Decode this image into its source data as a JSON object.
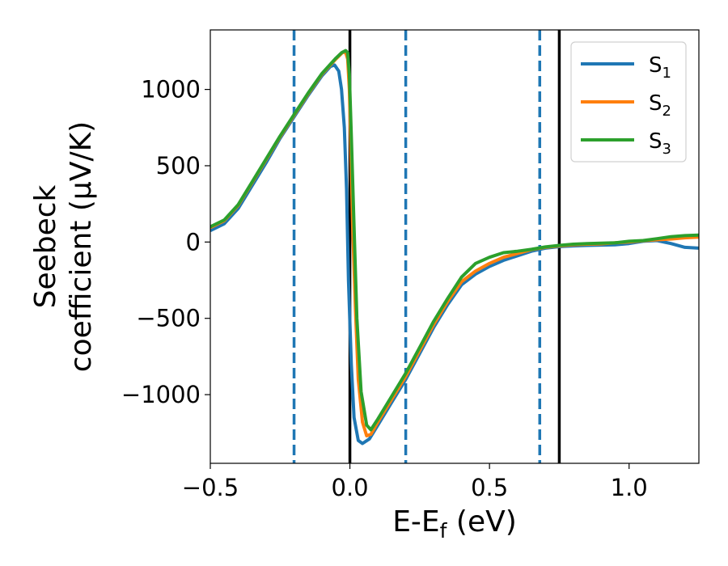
{
  "chart_data": {
    "type": "line",
    "xlabel": {
      "base": "E-E",
      "sub": "f",
      "tail": " (eV)"
    },
    "ylabel": {
      "line1": "Seebeck",
      "line2": "coefficient  (μV/K)"
    },
    "xlim": [
      -0.5,
      1.25
    ],
    "ylim": [
      -1450,
      1390
    ],
    "xticks": [
      {
        "value": -0.5,
        "label": "−0.5"
      },
      {
        "value": 0.0,
        "label": "0.0"
      },
      {
        "value": 0.5,
        "label": "0.5"
      },
      {
        "value": 1.0,
        "label": "1.0"
      }
    ],
    "yticks": [
      {
        "value": -1000,
        "label": "−1000"
      },
      {
        "value": -500,
        "label": "−500"
      },
      {
        "value": 0,
        "label": "0"
      },
      {
        "value": 500,
        "label": "500"
      },
      {
        "value": 1000,
        "label": "1000"
      }
    ],
    "grid": false,
    "legend_position": "top-right",
    "vlines": [
      {
        "x": -0.2,
        "style": "dashed",
        "color": "#1f77b4"
      },
      {
        "x": 0.0,
        "style": "solid",
        "color": "#000000"
      },
      {
        "x": 0.2,
        "style": "dashed",
        "color": "#1f77b4"
      },
      {
        "x": 0.68,
        "style": "dashed",
        "color": "#1f77b4"
      },
      {
        "x": 0.75,
        "style": "solid",
        "color": "#000000"
      }
    ],
    "series": [
      {
        "name": "S",
        "sub": "1",
        "color": "#1f77b4",
        "points": [
          [
            -0.5,
            75
          ],
          [
            -0.45,
            120
          ],
          [
            -0.4,
            220
          ],
          [
            -0.35,
            370
          ],
          [
            -0.3,
            520
          ],
          [
            -0.25,
            680
          ],
          [
            -0.2,
            820
          ],
          [
            -0.15,
            960
          ],
          [
            -0.1,
            1090
          ],
          [
            -0.07,
            1150
          ],
          [
            -0.055,
            1160
          ],
          [
            -0.04,
            1120
          ],
          [
            -0.03,
            1000
          ],
          [
            -0.02,
            750
          ],
          [
            -0.012,
            350
          ],
          [
            -0.005,
            -250
          ],
          [
            0.005,
            -800
          ],
          [
            0.015,
            -1150
          ],
          [
            0.03,
            -1300
          ],
          [
            0.045,
            -1320
          ],
          [
            0.07,
            -1290
          ],
          [
            0.1,
            -1200
          ],
          [
            0.15,
            -1050
          ],
          [
            0.2,
            -900
          ],
          [
            0.25,
            -730
          ],
          [
            0.3,
            -560
          ],
          [
            0.35,
            -410
          ],
          [
            0.4,
            -280
          ],
          [
            0.45,
            -210
          ],
          [
            0.5,
            -160
          ],
          [
            0.55,
            -120
          ],
          [
            0.6,
            -90
          ],
          [
            0.65,
            -60
          ],
          [
            0.7,
            -40
          ],
          [
            0.75,
            -30
          ],
          [
            0.8,
            -25
          ],
          [
            0.85,
            -22
          ],
          [
            0.9,
            -20
          ],
          [
            0.95,
            -18
          ],
          [
            1.0,
            -10
          ],
          [
            1.05,
            5
          ],
          [
            1.1,
            10
          ],
          [
            1.15,
            -10
          ],
          [
            1.2,
            -35
          ],
          [
            1.25,
            -40
          ]
        ]
      },
      {
        "name": "S",
        "sub": "2",
        "color": "#ff7f0e",
        "points": [
          [
            -0.5,
            95
          ],
          [
            -0.45,
            140
          ],
          [
            -0.4,
            240
          ],
          [
            -0.35,
            390
          ],
          [
            -0.3,
            540
          ],
          [
            -0.25,
            690
          ],
          [
            -0.2,
            830
          ],
          [
            -0.15,
            970
          ],
          [
            -0.1,
            1100
          ],
          [
            -0.05,
            1200
          ],
          [
            -0.025,
            1245
          ],
          [
            -0.015,
            1240
          ],
          [
            -0.008,
            1200
          ],
          [
            -0.002,
            1000
          ],
          [
            0.003,
            650
          ],
          [
            0.01,
            100
          ],
          [
            0.02,
            -450
          ],
          [
            0.03,
            -900
          ],
          [
            0.045,
            -1180
          ],
          [
            0.06,
            -1270
          ],
          [
            0.075,
            -1260
          ],
          [
            0.1,
            -1180
          ],
          [
            0.15,
            -1030
          ],
          [
            0.2,
            -880
          ],
          [
            0.25,
            -710
          ],
          [
            0.3,
            -540
          ],
          [
            0.35,
            -390
          ],
          [
            0.4,
            -260
          ],
          [
            0.45,
            -190
          ],
          [
            0.5,
            -140
          ],
          [
            0.55,
            -100
          ],
          [
            0.6,
            -75
          ],
          [
            0.65,
            -50
          ],
          [
            0.7,
            -35
          ],
          [
            0.75,
            -25
          ],
          [
            0.8,
            -18
          ],
          [
            0.85,
            -14
          ],
          [
            0.9,
            -12
          ],
          [
            0.95,
            -5
          ],
          [
            1.0,
            0
          ],
          [
            1.05,
            8
          ],
          [
            1.1,
            15
          ],
          [
            1.15,
            20
          ],
          [
            1.2,
            28
          ],
          [
            1.25,
            32
          ]
        ]
      },
      {
        "name": "S",
        "sub": "3",
        "color": "#2ca02c",
        "points": [
          [
            -0.5,
            100
          ],
          [
            -0.45,
            145
          ],
          [
            -0.4,
            245
          ],
          [
            -0.35,
            395
          ],
          [
            -0.3,
            545
          ],
          [
            -0.25,
            695
          ],
          [
            -0.2,
            835
          ],
          [
            -0.15,
            975
          ],
          [
            -0.1,
            1105
          ],
          [
            -0.05,
            1205
          ],
          [
            -0.03,
            1240
          ],
          [
            -0.015,
            1255
          ],
          [
            -0.008,
            1240
          ],
          [
            -0.002,
            1100
          ],
          [
            0.005,
            700
          ],
          [
            0.015,
            100
          ],
          [
            0.025,
            -500
          ],
          [
            0.04,
            -980
          ],
          [
            0.06,
            -1200
          ],
          [
            0.075,
            -1230
          ],
          [
            0.1,
            -1160
          ],
          [
            0.15,
            -1010
          ],
          [
            0.2,
            -860
          ],
          [
            0.25,
            -690
          ],
          [
            0.3,
            -520
          ],
          [
            0.35,
            -370
          ],
          [
            0.4,
            -230
          ],
          [
            0.45,
            -140
          ],
          [
            0.5,
            -100
          ],
          [
            0.55,
            -70
          ],
          [
            0.6,
            -60
          ],
          [
            0.65,
            -48
          ],
          [
            0.7,
            -32
          ],
          [
            0.75,
            -22
          ],
          [
            0.8,
            -14
          ],
          [
            0.85,
            -10
          ],
          [
            0.9,
            -8
          ],
          [
            0.95,
            -5
          ],
          [
            1.0,
            5
          ],
          [
            1.05,
            10
          ],
          [
            1.1,
            22
          ],
          [
            1.15,
            35
          ],
          [
            1.2,
            42
          ],
          [
            1.25,
            45
          ]
        ]
      }
    ]
  }
}
